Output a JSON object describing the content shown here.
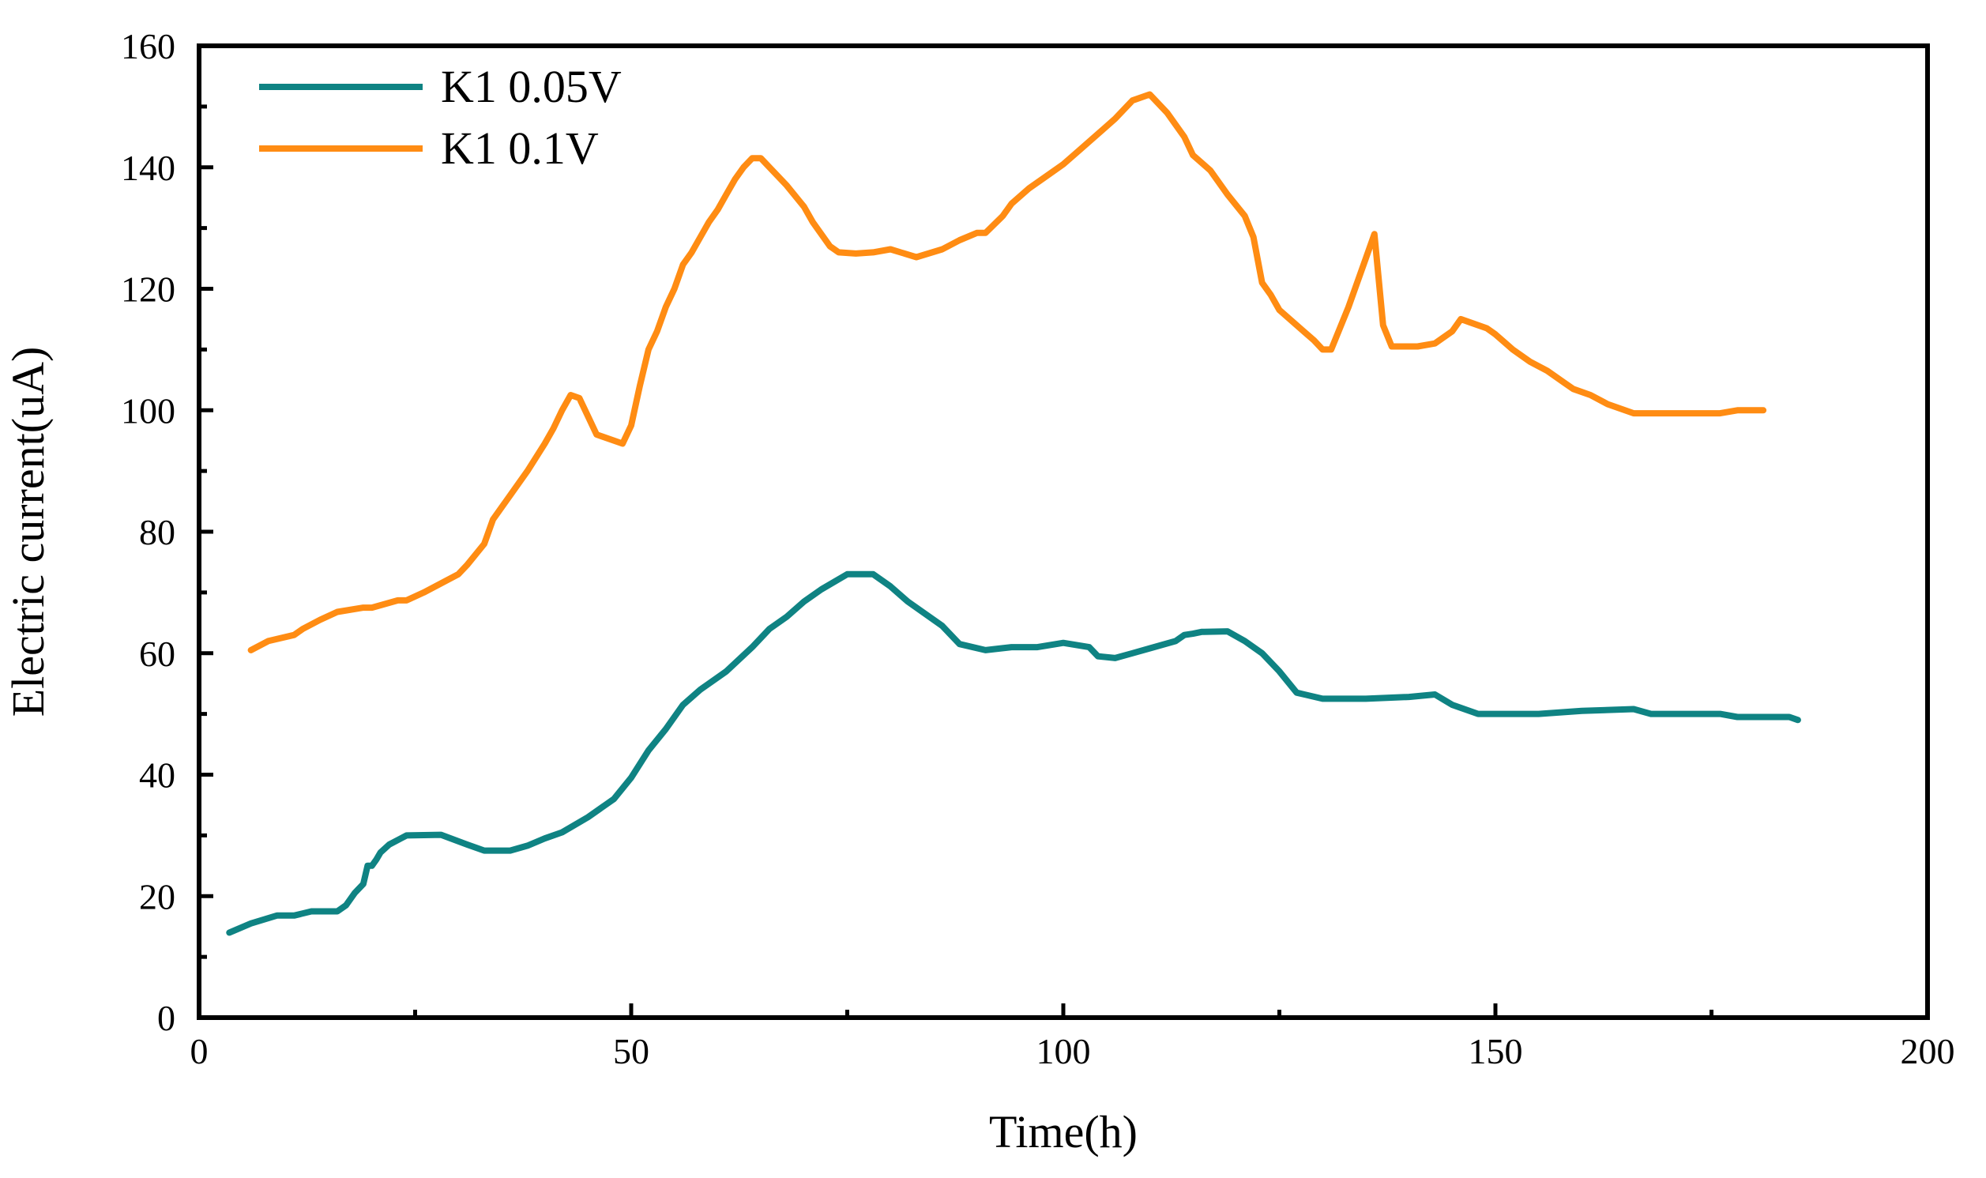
{
  "chart_data": {
    "type": "line",
    "title": "",
    "xlabel": "Time(h)",
    "ylabel": "Electric current(uA)",
    "xlim": [
      0,
      200
    ],
    "ylim": [
      0,
      160
    ],
    "x_ticks": [
      0,
      50,
      100,
      150,
      200
    ],
    "y_ticks": [
      0,
      20,
      40,
      60,
      80,
      100,
      120,
      140,
      160
    ],
    "x_tick_labels": [
      "0",
      "50",
      "100",
      "150",
      "200"
    ],
    "y_tick_labels": [
      "0",
      "20",
      "40",
      "60",
      "80",
      "100",
      "120",
      "140",
      "160"
    ],
    "legend_position": "top-left",
    "grid": false,
    "series": [
      {
        "name": "K1 0.05V",
        "color": "#0F8383",
        "points": [
          [
            3.5,
            14
          ],
          [
            6,
            15.5
          ],
          [
            9,
            16.8
          ],
          [
            11,
            16.8
          ],
          [
            13,
            17.5
          ],
          [
            16,
            17.5
          ],
          [
            17,
            18.5
          ],
          [
            18,
            20.5
          ],
          [
            19,
            22
          ],
          [
            19.5,
            25
          ],
          [
            20,
            25
          ],
          [
            20.5,
            26
          ],
          [
            21,
            27.2
          ],
          [
            22,
            28.5
          ],
          [
            24,
            30
          ],
          [
            28,
            30.1
          ],
          [
            31,
            28.5
          ],
          [
            33,
            27.5
          ],
          [
            36,
            27.5
          ],
          [
            38,
            28.3
          ],
          [
            40,
            29.5
          ],
          [
            42,
            30.5
          ],
          [
            45,
            33
          ],
          [
            48,
            36
          ],
          [
            50,
            39.5
          ],
          [
            52,
            44
          ],
          [
            54,
            47.5
          ],
          [
            56,
            51.5
          ],
          [
            58,
            54
          ],
          [
            61,
            57
          ],
          [
            64,
            61
          ],
          [
            66,
            64
          ],
          [
            68,
            66
          ],
          [
            70,
            68.5
          ],
          [
            72,
            70.5
          ],
          [
            75,
            73
          ],
          [
            78,
            73
          ],
          [
            80,
            71
          ],
          [
            82,
            68.5
          ],
          [
            86,
            64.5
          ],
          [
            88,
            61.5
          ],
          [
            91,
            60.5
          ],
          [
            94,
            61
          ],
          [
            97,
            61
          ],
          [
            100,
            61.7
          ],
          [
            103,
            61
          ],
          [
            104,
            59.5
          ],
          [
            106,
            59.2
          ],
          [
            108,
            60
          ],
          [
            110,
            60.8
          ],
          [
            113,
            62
          ],
          [
            114,
            63
          ],
          [
            115,
            63.2
          ],
          [
            116,
            63.5
          ],
          [
            119,
            63.6
          ],
          [
            121,
            62
          ],
          [
            123,
            60
          ],
          [
            125,
            57
          ],
          [
            127,
            53.5
          ],
          [
            130,
            52.5
          ],
          [
            135,
            52.5
          ],
          [
            140,
            52.8
          ],
          [
            143,
            53.2
          ],
          [
            145,
            51.5
          ],
          [
            148,
            50
          ],
          [
            151,
            50
          ],
          [
            155,
            50
          ],
          [
            160,
            50.5
          ],
          [
            166,
            50.8
          ],
          [
            168,
            50
          ],
          [
            172,
            50
          ],
          [
            176,
            50
          ],
          [
            178,
            49.5
          ],
          [
            184,
            49.5
          ],
          [
            185,
            49
          ]
        ]
      },
      {
        "name": "K1 0.1V",
        "color": "#FF8C13",
        "points": [
          [
            6,
            60.5
          ],
          [
            8,
            62
          ],
          [
            11,
            63
          ],
          [
            12,
            64
          ],
          [
            14,
            65.5
          ],
          [
            16,
            66.8
          ],
          [
            19,
            67.5
          ],
          [
            20,
            67.5
          ],
          [
            23,
            68.7
          ],
          [
            24,
            68.7
          ],
          [
            26,
            70
          ],
          [
            30,
            73
          ],
          [
            31,
            74.5
          ],
          [
            33,
            78
          ],
          [
            34,
            82
          ],
          [
            36,
            86
          ],
          [
            38,
            90
          ],
          [
            40,
            94.5
          ],
          [
            41,
            97
          ],
          [
            42,
            100
          ],
          [
            43,
            102.5
          ],
          [
            44,
            102
          ],
          [
            45,
            99
          ],
          [
            46,
            96
          ],
          [
            49,
            94.5
          ],
          [
            50,
            97.5
          ],
          [
            51,
            104
          ],
          [
            52,
            110
          ],
          [
            53,
            113
          ],
          [
            54,
            117
          ],
          [
            55,
            120
          ],
          [
            56,
            124
          ],
          [
            57,
            126
          ],
          [
            58,
            128.5
          ],
          [
            59,
            131
          ],
          [
            60,
            133
          ],
          [
            61,
            135.5
          ],
          [
            62,
            138
          ],
          [
            63,
            140
          ],
          [
            64,
            141.5
          ],
          [
            65,
            141.5
          ],
          [
            66,
            140
          ],
          [
            68,
            137
          ],
          [
            70,
            133.5
          ],
          [
            71,
            131
          ],
          [
            73,
            127
          ],
          [
            74,
            126
          ],
          [
            76,
            125.8
          ],
          [
            78,
            126
          ],
          [
            80,
            126.5
          ],
          [
            83,
            125.2
          ],
          [
            86,
            126.5
          ],
          [
            88,
            128
          ],
          [
            90,
            129.2
          ],
          [
            91,
            129.2
          ],
          [
            93,
            132
          ],
          [
            94,
            134
          ],
          [
            96,
            136.5
          ],
          [
            98,
            138.5
          ],
          [
            100,
            140.5
          ],
          [
            102,
            143
          ],
          [
            104,
            145.5
          ],
          [
            106,
            148
          ],
          [
            108,
            151
          ],
          [
            110,
            152
          ],
          [
            112,
            149
          ],
          [
            114,
            145
          ],
          [
            115,
            142
          ],
          [
            117,
            139.5
          ],
          [
            119,
            135.5
          ],
          [
            121,
            132
          ],
          [
            122,
            128.5
          ],
          [
            123,
            121
          ],
          [
            124,
            119
          ],
          [
            125,
            116.5
          ],
          [
            127,
            114
          ],
          [
            129,
            111.5
          ],
          [
            130,
            110
          ],
          [
            131,
            110
          ],
          [
            133,
            117
          ],
          [
            135,
            125
          ],
          [
            136,
            129
          ],
          [
            137,
            114
          ],
          [
            138,
            110.5
          ],
          [
            141,
            110.5
          ],
          [
            143,
            111
          ],
          [
            145,
            113
          ],
          [
            146,
            115
          ],
          [
            147,
            114.5
          ],
          [
            149,
            113.5
          ],
          [
            150,
            112.5
          ],
          [
            152,
            110
          ],
          [
            154,
            108
          ],
          [
            156,
            106.5
          ],
          [
            158,
            104.5
          ],
          [
            159,
            103.5
          ],
          [
            161,
            102.5
          ],
          [
            163,
            101
          ],
          [
            166,
            99.5
          ],
          [
            168,
            99.5
          ],
          [
            170,
            99.5
          ],
          [
            174,
            99.5
          ],
          [
            176,
            99.5
          ],
          [
            178,
            100
          ],
          [
            181,
            100
          ]
        ]
      }
    ]
  }
}
